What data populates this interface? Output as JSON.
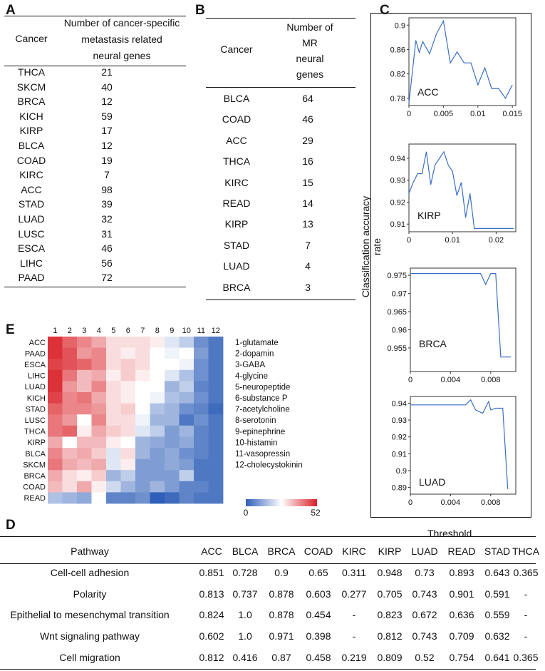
{
  "panel_labels": {
    "a": "A",
    "b": "B",
    "c": "C",
    "d": "D",
    "e": "E"
  },
  "table_a": {
    "header_cancer": "Cancer",
    "header_count": [
      "Number of cancer-specific",
      "metastasis related",
      "neural genes"
    ],
    "rows": [
      [
        "THCA",
        "21"
      ],
      [
        "SKCM",
        "40"
      ],
      [
        "BRCA",
        "12"
      ],
      [
        "KICH",
        "59"
      ],
      [
        "KIRP",
        "17"
      ],
      [
        "BLCA",
        "12"
      ],
      [
        "COAD",
        "19"
      ],
      [
        "KIRC",
        "7"
      ],
      [
        "ACC",
        "98"
      ],
      [
        "STAD",
        "39"
      ],
      [
        "LUAD",
        "32"
      ],
      [
        "LUSC",
        "31"
      ],
      [
        "ESCA",
        "46"
      ],
      [
        "LIHC",
        "56"
      ],
      [
        "PAAD",
        "72"
      ]
    ]
  },
  "table_b": {
    "header_cancer": "Cancer",
    "header_count": [
      "Number of",
      "MR",
      "neural",
      "genes"
    ],
    "rows": [
      [
        "BLCA",
        "64"
      ],
      [
        "COAD",
        "46"
      ],
      [
        "ACC",
        "29"
      ],
      [
        "THCA",
        "16"
      ],
      [
        "KIRC",
        "15"
      ],
      [
        "READ",
        "14"
      ],
      [
        "KIRP",
        "13"
      ],
      [
        "STAD",
        "7"
      ],
      [
        "LUAD",
        "4"
      ],
      [
        "BRCA",
        "3"
      ]
    ]
  },
  "panel_c": {
    "ylabel": "Classification accuracy rate",
    "xlabel": "Threshold"
  },
  "chart_data": [
    {
      "type": "line",
      "label": "ACC",
      "xlim": [
        0,
        0.0155
      ],
      "ylim": [
        0.768,
        0.912
      ],
      "xticks": [
        {
          "v": 0,
          "t": "0"
        },
        {
          "v": 0.005,
          "t": "0.005"
        },
        {
          "v": 0.01,
          "t": "0.01"
        },
        {
          "v": 0.015,
          "t": "0.015"
        }
      ],
      "yticks": [
        {
          "v": 0.78,
          "t": "0.78"
        },
        {
          "v": 0.82,
          "t": "0.82"
        },
        {
          "v": 0.86,
          "t": "0.86"
        },
        {
          "v": 0.9,
          "t": "0.9"
        }
      ],
      "x": [
        0,
        0.001,
        0.0015,
        0.002,
        0.003,
        0.004,
        0.005,
        0.006,
        0.007,
        0.008,
        0.009,
        0.01,
        0.011,
        0.012,
        0.013,
        0.014,
        0.015
      ],
      "y": [
        0.772,
        0.875,
        0.855,
        0.873,
        0.853,
        0.886,
        0.907,
        0.838,
        0.856,
        0.838,
        0.838,
        0.802,
        0.83,
        0.796,
        0.796,
        0.78,
        0.802
      ]
    },
    {
      "type": "line",
      "label": "KIRP",
      "xlim": [
        0,
        0.0245
      ],
      "ylim": [
        0.9065,
        0.9465
      ],
      "xticks": [
        {
          "v": 0,
          "t": "0"
        },
        {
          "v": 0.01,
          "t": "0.01"
        },
        {
          "v": 0.02,
          "t": "0.02"
        }
      ],
      "yticks": [
        {
          "v": 0.91,
          "t": "0.91"
        },
        {
          "v": 0.92,
          "t": "0.92"
        },
        {
          "v": 0.93,
          "t": "0.93"
        },
        {
          "v": 0.94,
          "t": "0.94"
        }
      ],
      "x": [
        0,
        0.001,
        0.002,
        0.003,
        0.004,
        0.005,
        0.006,
        0.007,
        0.008,
        0.009,
        0.01,
        0.011,
        0.012,
        0.013,
        0.014,
        0.015,
        0.016,
        0.017,
        0.024
      ],
      "y": [
        0.924,
        0.929,
        0.933,
        0.933,
        0.943,
        0.928,
        0.937,
        0.94,
        0.943,
        0.937,
        0.934,
        0.923,
        0.929,
        0.913,
        0.924,
        0.908,
        0.908,
        0.908,
        0.908
      ]
    },
    {
      "type": "line",
      "label": "BRCA",
      "xlim": [
        0,
        0.0105
      ],
      "ylim": [
        0.9485,
        0.977
      ],
      "xticks": [
        {
          "v": 0,
          "t": "0"
        },
        {
          "v": 0.004,
          "t": "0.004"
        },
        {
          "v": 0.008,
          "t": "0.008"
        }
      ],
      "yticks": [
        {
          "v": 0.955,
          "t": "0.955"
        },
        {
          "v": 0.96,
          "t": "0.96"
        },
        {
          "v": 0.965,
          "t": "0.965"
        },
        {
          "v": 0.97,
          "t": "0.97"
        },
        {
          "v": 0.975,
          "t": "0.975"
        }
      ],
      "x": [
        0,
        0.007,
        0.0075,
        0.008,
        0.0085,
        0.009,
        0.0095,
        0.01
      ],
      "y": [
        0.9755,
        0.9755,
        0.9725,
        0.9755,
        0.9755,
        0.9525,
        0.9525,
        0.9525
      ]
    },
    {
      "type": "line",
      "label": "LUAD",
      "xlim": [
        0,
        0.0105
      ],
      "ylim": [
        0.886,
        0.944
      ],
      "xticks": [
        {
          "v": 0,
          "t": "0"
        },
        {
          "v": 0.004,
          "t": "0.004"
        },
        {
          "v": 0.008,
          "t": "0.008"
        }
      ],
      "yticks": [
        {
          "v": 0.89,
          "t": "0.89"
        },
        {
          "v": 0.9,
          "t": "0.9"
        },
        {
          "v": 0.91,
          "t": "0.91"
        },
        {
          "v": 0.92,
          "t": "0.92"
        },
        {
          "v": 0.93,
          "t": "0.93"
        },
        {
          "v": 0.94,
          "t": "0.94"
        }
      ],
      "x": [
        0,
        0.0055,
        0.006,
        0.0065,
        0.0072,
        0.0078,
        0.008,
        0.0085,
        0.0092,
        0.0097
      ],
      "y": [
        0.939,
        0.939,
        0.942,
        0.936,
        0.934,
        0.941,
        0.936,
        0.937,
        0.937,
        0.889
      ]
    },
    {
      "type": "heatmap",
      "rows": [
        "ACC",
        "PAAD",
        "ESCA",
        "LIHC",
        "LUAD",
        "KICH",
        "STAD",
        "LUSC",
        "THCA",
        "KIRP",
        "BLCA",
        "SKCM",
        "BRCA",
        "COAD",
        "READ"
      ],
      "cols": [
        "1",
        "2",
        "3",
        "4",
        "5",
        "6",
        "7",
        "8",
        "9",
        "10",
        "11",
        "12"
      ],
      "legend": [
        "1-glutamate",
        "2-dopamin",
        "3-GABA",
        "4-glycine",
        "5-neuropeptide",
        "6-substance P",
        "7-acetylcholine",
        "8-serotonin",
        "9-epinephrine",
        "10-histamin",
        "11-vasopressin",
        "12-cholecystokinin"
      ],
      "scale_min": "0",
      "scale_max": "52",
      "vmin": 0,
      "vmax": 52,
      "vmid": 26,
      "values": [
        [
          50,
          44,
          40,
          36,
          30,
          30,
          30,
          28,
          22,
          18,
          8,
          4
        ],
        [
          50,
          46,
          38,
          40,
          30,
          28,
          30,
          26,
          24,
          26,
          10,
          4
        ],
        [
          48,
          46,
          44,
          40,
          30,
          32,
          30,
          26,
          26,
          24,
          8,
          4
        ],
        [
          50,
          42,
          34,
          36,
          28,
          32,
          28,
          26,
          22,
          16,
          8,
          4
        ],
        [
          50,
          38,
          34,
          40,
          30,
          28,
          26,
          26,
          14,
          18,
          6,
          4
        ],
        [
          48,
          40,
          42,
          36,
          30,
          28,
          26,
          24,
          16,
          14,
          8,
          4
        ],
        [
          44,
          40,
          40,
          38,
          30,
          32,
          26,
          16,
          14,
          8,
          6,
          2
        ],
        [
          42,
          38,
          26,
          40,
          30,
          30,
          24,
          14,
          14,
          4,
          8,
          4
        ],
        [
          42,
          44,
          28,
          36,
          32,
          30,
          22,
          18,
          10,
          14,
          6,
          4
        ],
        [
          36,
          26,
          34,
          34,
          28,
          26,
          14,
          12,
          10,
          12,
          6,
          4
        ],
        [
          40,
          34,
          36,
          32,
          22,
          30,
          14,
          10,
          12,
          8,
          6,
          4
        ],
        [
          42,
          36,
          34,
          36,
          22,
          28,
          10,
          10,
          12,
          10,
          4,
          4
        ],
        [
          36,
          30,
          28,
          32,
          14,
          18,
          10,
          10,
          10,
          18,
          4,
          4
        ],
        [
          34,
          30,
          36,
          28,
          20,
          14,
          10,
          14,
          10,
          6,
          6,
          4
        ],
        [
          16,
          14,
          12,
          26,
          6,
          6,
          8,
          0,
          2,
          6,
          4,
          4
        ]
      ]
    }
  ],
  "table_d": {
    "header": [
      "Pathway",
      "ACC",
      "BLCA",
      "BRCA",
      "COAD",
      "KIRC",
      "KIRP",
      "LUAD",
      "READ",
      "STAD",
      "THCA"
    ],
    "rows": [
      [
        "Cell-cell adhesion",
        "0.851",
        "0.728",
        "0.9",
        "0.65",
        "0.311",
        "0.948",
        "0.73",
        "0.893",
        "0.643",
        "0.365"
      ],
      [
        "Polarity",
        "0.813",
        "0.737",
        "0.878",
        "0.603",
        "0.277",
        "0.705",
        "0.743",
        "0.901",
        "0.591",
        "-"
      ],
      [
        "Epithelial to mesenchymal transition",
        "0.824",
        "1.0",
        "0.878",
        "0.454",
        "-",
        "0.823",
        "0.672",
        "0.636",
        "0.559",
        "-"
      ],
      [
        "Wnt signaling pathway",
        "0.602",
        "1.0",
        "0.971",
        "0.398",
        "-",
        "0.812",
        "0.743",
        "0.709",
        "0.632",
        "-"
      ],
      [
        "Cell migration",
        "0.812",
        "0.416",
        "0.87",
        "0.458",
        "0.219",
        "0.809",
        "0.52",
        "0.754",
        "0.641",
        "0.365"
      ]
    ]
  },
  "colors": {
    "line": "#3a6fc4",
    "low": "#2f5fb8",
    "mid": "#ffffff",
    "high": "#d92027"
  }
}
